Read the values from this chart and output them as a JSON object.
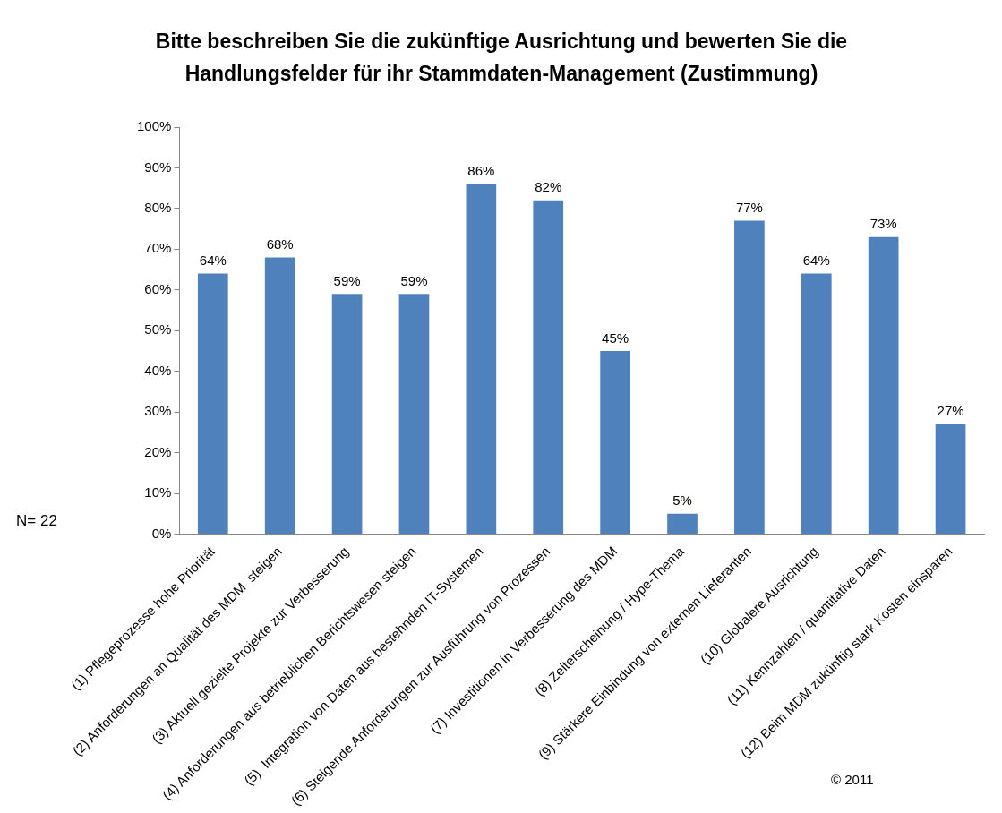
{
  "chart_data": {
    "type": "bar",
    "title": "Bitte beschreiben Sie die zukünftige Ausrichtung und bewerten Sie die Handlungsfelder für ihr Stammdaten-Management (Zustimmung)",
    "categories": [
      "(1) Pflegeprozesse hohe Priorität",
      "(2) Anforderungen an Qualität des MDM  steigen",
      "(3) Aktuell gezielte Projekte zur Verbesserung",
      "(4) Anforderungen aus betrieblichen Berichtswesen steigen",
      "(5)  Integration von Daten aus bestehnden IT-Systemen",
      "(6) Steigende Anforderungen zur Ausführung von Prozessen",
      "(7) Investitionen in Verbesserung des MDM",
      "(8) Zeiterscheinung / Hype-Thema",
      "(9) Stärkere Einbindung von externen Lieferanten",
      "(10) Globalere Ausrichtung",
      "(11) Kennzahlen / quantitative Daten",
      "(12) Beim MDM zukünftig stark Kosten einsparen"
    ],
    "values": [
      64,
      68,
      59,
      59,
      86,
      82,
      45,
      5,
      77,
      64,
      73,
      27
    ],
    "value_labels": [
      "64%",
      "68%",
      "59%",
      "59%",
      "86%",
      "82%",
      "45%",
      "5%",
      "77%",
      "64%",
      "73%",
      "27%"
    ],
    "color": "#4f81bd",
    "ylim": [
      0,
      100
    ],
    "yticks": [
      {
        "value": 0,
        "label": "0%"
      },
      {
        "value": 10,
        "label": "10%"
      },
      {
        "value": 20,
        "label": "20%"
      },
      {
        "value": 30,
        "label": "30%"
      },
      {
        "value": 40,
        "label": "40%"
      },
      {
        "value": 50,
        "label": "50%"
      },
      {
        "value": 60,
        "label": "60%"
      },
      {
        "value": 70,
        "label": "70%"
      },
      {
        "value": 80,
        "label": "80%"
      },
      {
        "value": 90,
        "label": "90%"
      },
      {
        "value": 100,
        "label": "100%"
      }
    ],
    "grid": false,
    "legend": false,
    "annotations": [
      "N= 22",
      "© 2011"
    ]
  }
}
